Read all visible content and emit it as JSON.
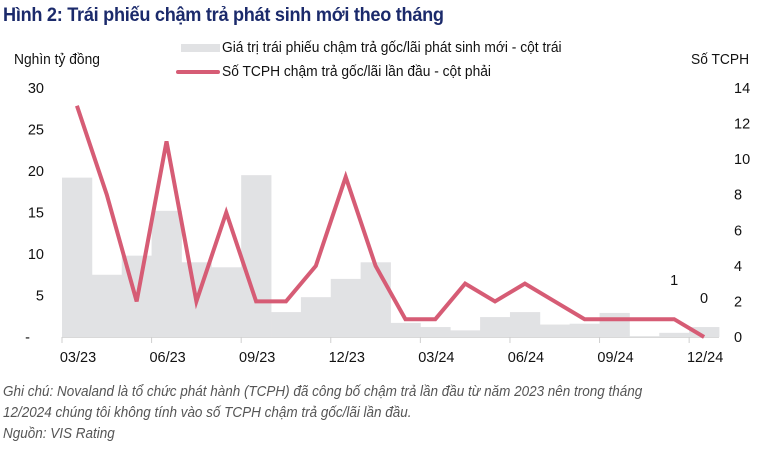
{
  "title": "Hình 2: Trái phiếu chậm trả phát sinh mới theo tháng",
  "left_axis_title": "Nghìn tỷ đồng",
  "right_axis_title": "Số TCPH",
  "legend": {
    "bar_label": "Giá trị trái phiếu chậm trả gốc/lãi phát sinh mới - cột trái",
    "line_label": "Số TCPH chậm trả gốc/lãi lần đầu - cột phải"
  },
  "notes": {
    "line1": "Ghi chú: Novaland là tổ chức phát hành (TCPH) đã công bố chậm trả lần đầu từ năm 2023 nên trong tháng",
    "line2": "12/2024 chúng tôi không tính vào số TCPH chậm trả gốc/lãi lần đầu.",
    "source": "Nguồn: VIS Rating"
  },
  "colors": {
    "title": "#1b2a6b",
    "bar": "#e1e2e4",
    "line": "#d65c75"
  },
  "chart_data": {
    "type": "bar+line",
    "title": "Hình 2: Trái phiếu chậm trả phát sinh mới theo tháng",
    "xlabel": "",
    "ylabel": "Nghìn tỷ đồng",
    "y2label": "Số TCPH",
    "categories": [
      "03/23",
      "04/23",
      "05/23",
      "06/23",
      "07/23",
      "08/23",
      "09/23",
      "10/23",
      "11/23",
      "12/23",
      "01/24",
      "02/24",
      "03/24",
      "04/24",
      "05/24",
      "06/24",
      "07/24",
      "08/24",
      "09/24",
      "10/24",
      "11/24",
      "12/24"
    ],
    "x_tick_labels": [
      "03/23",
      "06/23",
      "09/23",
      "12/23",
      "03/24",
      "06/24",
      "09/24",
      "12/24"
    ],
    "series": [
      {
        "name": "Giá trị trái phiếu chậm trả gốc/lãi phát sinh mới - cột trái",
        "type": "bar",
        "axis": "left",
        "values": [
          19.2,
          7.5,
          9.8,
          15.2,
          9.0,
          8.4,
          19.5,
          3.0,
          4.8,
          7.0,
          9.0,
          1.7,
          1.2,
          0.8,
          2.4,
          3.0,
          1.5,
          1.6,
          2.9,
          0.1,
          0.5,
          1.2
        ]
      },
      {
        "name": "Số TCPH chậm trả gốc/lãi lần đầu - cột phải",
        "type": "line",
        "axis": "right",
        "values": [
          13,
          8,
          2,
          11,
          2,
          7,
          2,
          2,
          4,
          9,
          4,
          1,
          1,
          3,
          2,
          3,
          2,
          1,
          1,
          1,
          1,
          0
        ]
      }
    ],
    "annotations": [
      {
        "category": "11/24",
        "text": "1"
      },
      {
        "category": "12/24",
        "text": "0"
      }
    ],
    "left_axis": {
      "ylim": [
        0,
        30
      ],
      "ticks": [
        "-",
        "5",
        "10",
        "15",
        "20",
        "25",
        "30"
      ]
    },
    "right_axis": {
      "ylim": [
        0,
        14
      ],
      "ticks": [
        "0",
        "2",
        "4",
        "6",
        "8",
        "10",
        "12",
        "14"
      ]
    },
    "grid": false,
    "legend_position": "top"
  }
}
